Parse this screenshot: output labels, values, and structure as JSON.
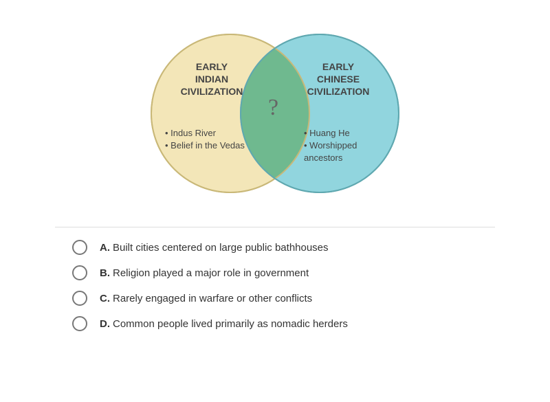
{
  "venn": {
    "left": {
      "title": "EARLY\nINDIAN\nCIVILIZATION",
      "bullets": [
        "Indus River",
        "Belief in the Vedas"
      ],
      "fill_color": "#f3e6b8",
      "border_color": "#c9b878"
    },
    "right": {
      "title": "EARLY\nCHINESE\nCIVILIZATION",
      "bullets": [
        "Huang He",
        "Worshipped ancestors"
      ],
      "fill_color": "#91d5de",
      "border_color": "#5fa8b0"
    },
    "overlap": {
      "symbol": "?",
      "fill_color": "#6fb98f"
    },
    "title_fontsize": 14,
    "bullet_fontsize": 13,
    "circle_diameter": 230,
    "container_width": 400,
    "container_height": 280
  },
  "divider_color": "#dddddd",
  "options": [
    {
      "letter": "A.",
      "text": "Built cities centered on large public bathhouses"
    },
    {
      "letter": "B.",
      "text": "Religion played a major role in government"
    },
    {
      "letter": "C.",
      "text": "Rarely engaged in warfare or other conflicts"
    },
    {
      "letter": "D.",
      "text": "Common people lived primarily as nomadic herders"
    }
  ],
  "radio_border_color": "#777777",
  "option_fontsize": 15
}
